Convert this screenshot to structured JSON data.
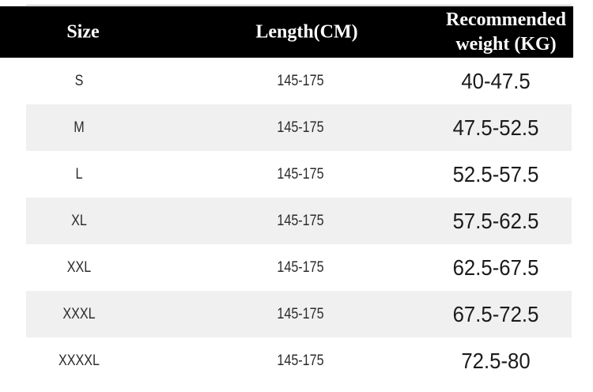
{
  "chart_data": {
    "type": "table",
    "columns": [
      "Size",
      "Length(CM)",
      "Recommended weight (KG)"
    ],
    "rows": [
      [
        "S",
        "145-175",
        "40-47.5"
      ],
      [
        "M",
        "145-175",
        "47.5-52.5"
      ],
      [
        "L",
        "145-175",
        "52.5-57.5"
      ],
      [
        "XL",
        "145-175",
        "57.5-62.5"
      ],
      [
        "XXL",
        "145-175",
        "62.5-67.5"
      ],
      [
        "XXXL",
        "145-175",
        "67.5-72.5"
      ],
      [
        "XXXXL",
        "145-175",
        "72.5-80"
      ]
    ],
    "layout": "header row black with white serif text; body rows alternate white / light-gray stripes; all cells center-aligned"
  },
  "header": {
    "size": "Size",
    "length": "Length(CM)",
    "weight": "Recommended weight (KG)"
  },
  "colors": {
    "header_bg": "#000000",
    "header_text": "#ffffff",
    "stripe": "#f0f0f0",
    "row_bg": "#ffffff",
    "body_text": "#2b2b2b",
    "top_rule": "#bcc2c9"
  }
}
